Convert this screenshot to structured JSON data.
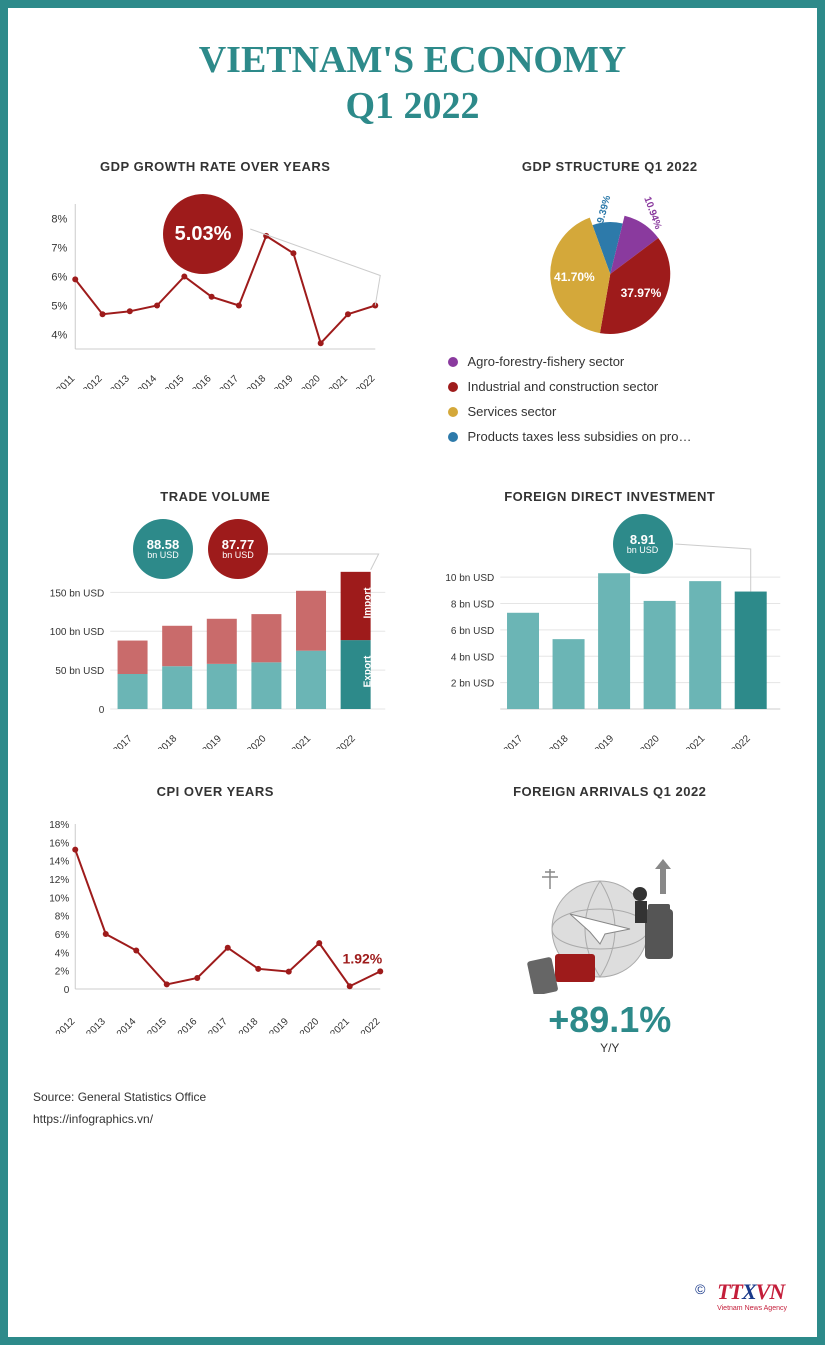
{
  "title_line1": "VIETNAM'S ECONOMY",
  "title_line2": "Q1 2022",
  "colors": {
    "teal": "#2d8a8a",
    "teal_light": "#6bb5b5",
    "red_dark": "#9e1b1b",
    "red_light": "#c96b6b",
    "purple": "#8a3a9e",
    "blue": "#2d7aaa",
    "yellow": "#d4a83a",
    "grid": "#cccccc",
    "text": "#333333"
  },
  "gdp_growth": {
    "title": "GDP GROWTH RATE OVER YEARS",
    "years": [
      "2011",
      "2012",
      "2013",
      "2014",
      "2015",
      "2016",
      "2017",
      "2018",
      "2019",
      "2020",
      "2021",
      "2022"
    ],
    "values": [
      5.9,
      4.7,
      4.8,
      5.0,
      6.0,
      5.3,
      5.0,
      7.4,
      6.8,
      3.7,
      4.7,
      5.0
    ],
    "ylim": [
      3.5,
      8.5
    ],
    "yticks": [
      "4%",
      "5%",
      "6%",
      "7%",
      "8%"
    ],
    "ytick_vals": [
      4,
      5,
      6,
      7,
      8
    ],
    "badge": "5.03%",
    "line_color": "#9e1b1b",
    "marker_color": "#9e1b1b"
  },
  "gdp_structure": {
    "title": "GDP STRUCTURE Q1 2022",
    "slices": [
      {
        "label": "Agro-forestry-fishery sector",
        "pct": 10.94,
        "color": "#8a3a9e",
        "display": "10.94%"
      },
      {
        "label": "Industrial and construction sector",
        "pct": 37.97,
        "color": "#9e1b1b",
        "display": "37.97%"
      },
      {
        "label": "Services sector",
        "pct": 41.7,
        "color": "#d4a83a",
        "display": "41.70%"
      },
      {
        "label": "Products taxes less subsidies on pro…",
        "pct": 9.39,
        "color": "#2d7aaa",
        "display": "9.39%"
      }
    ]
  },
  "trade": {
    "title": "TRADE VOLUME",
    "years": [
      "2017",
      "2018",
      "2019",
      "2020",
      "2021",
      "2022"
    ],
    "export": [
      45,
      55,
      58,
      60,
      75,
      88.58
    ],
    "import": [
      43,
      52,
      58,
      62,
      77,
      87.77
    ],
    "yticks": [
      "0",
      "50 bn USD",
      "100 bn USD",
      "150 bn USD"
    ],
    "ytick_vals": [
      0,
      50,
      100,
      150
    ],
    "ylim": [
      0,
      180
    ],
    "badge_export": {
      "val": "88.58",
      "unit": "bn USD"
    },
    "badge_import": {
      "val": "87.77",
      "unit": "bn USD"
    },
    "label_export": "Export",
    "label_import": "Import",
    "export_color": "#6bb5b5",
    "import_color": "#c96b6b",
    "export_color_last": "#2d8a8a",
    "import_color_last": "#9e1b1b"
  },
  "fdi": {
    "title": "FOREIGN DIRECT INVESTMENT",
    "years": [
      "2017",
      "2018",
      "2019",
      "2020",
      "2021",
      "2022"
    ],
    "values": [
      7.3,
      5.3,
      10.3,
      8.2,
      9.7,
      8.91
    ],
    "ylim": [
      0,
      11
    ],
    "yticks": [
      "2 bn USD",
      "4 bn USD",
      "6 bn USD",
      "8 bn USD",
      "10 bn USD"
    ],
    "ytick_vals": [
      2,
      4,
      6,
      8,
      10
    ],
    "badge": {
      "val": "8.91",
      "unit": "bn USD"
    },
    "bar_color": "#6bb5b5",
    "bar_color_last": "#2d8a8a"
  },
  "cpi": {
    "title": "CPI OVER YEARS",
    "years": [
      "2012",
      "2013",
      "2014",
      "2015",
      "2016",
      "2017",
      "2018",
      "2019",
      "2020",
      "2021",
      "2022"
    ],
    "values": [
      15.2,
      6.0,
      4.2,
      0.5,
      1.2,
      4.5,
      2.2,
      1.9,
      5.0,
      0.3,
      1.92
    ],
    "ylim": [
      0,
      18
    ],
    "yticks": [
      "0",
      "2%",
      "4%",
      "6%",
      "8%",
      "10%",
      "12%",
      "14%",
      "16%",
      "18%"
    ],
    "ytick_vals": [
      0,
      2,
      4,
      6,
      8,
      10,
      12,
      14,
      16,
      18
    ],
    "label": "1.92%",
    "line_color": "#9e1b1b"
  },
  "arrivals": {
    "title": "FOREIGN ARRIVALS Q1 2022",
    "value": "+89.1%",
    "sub": "Y/Y"
  },
  "source1": "Source: General Statistics Office",
  "source2": "https://infographics.vn/",
  "logo": {
    "brand": "TTXVN",
    "sub": "Vietnam News Agency",
    "copyright": "©"
  }
}
